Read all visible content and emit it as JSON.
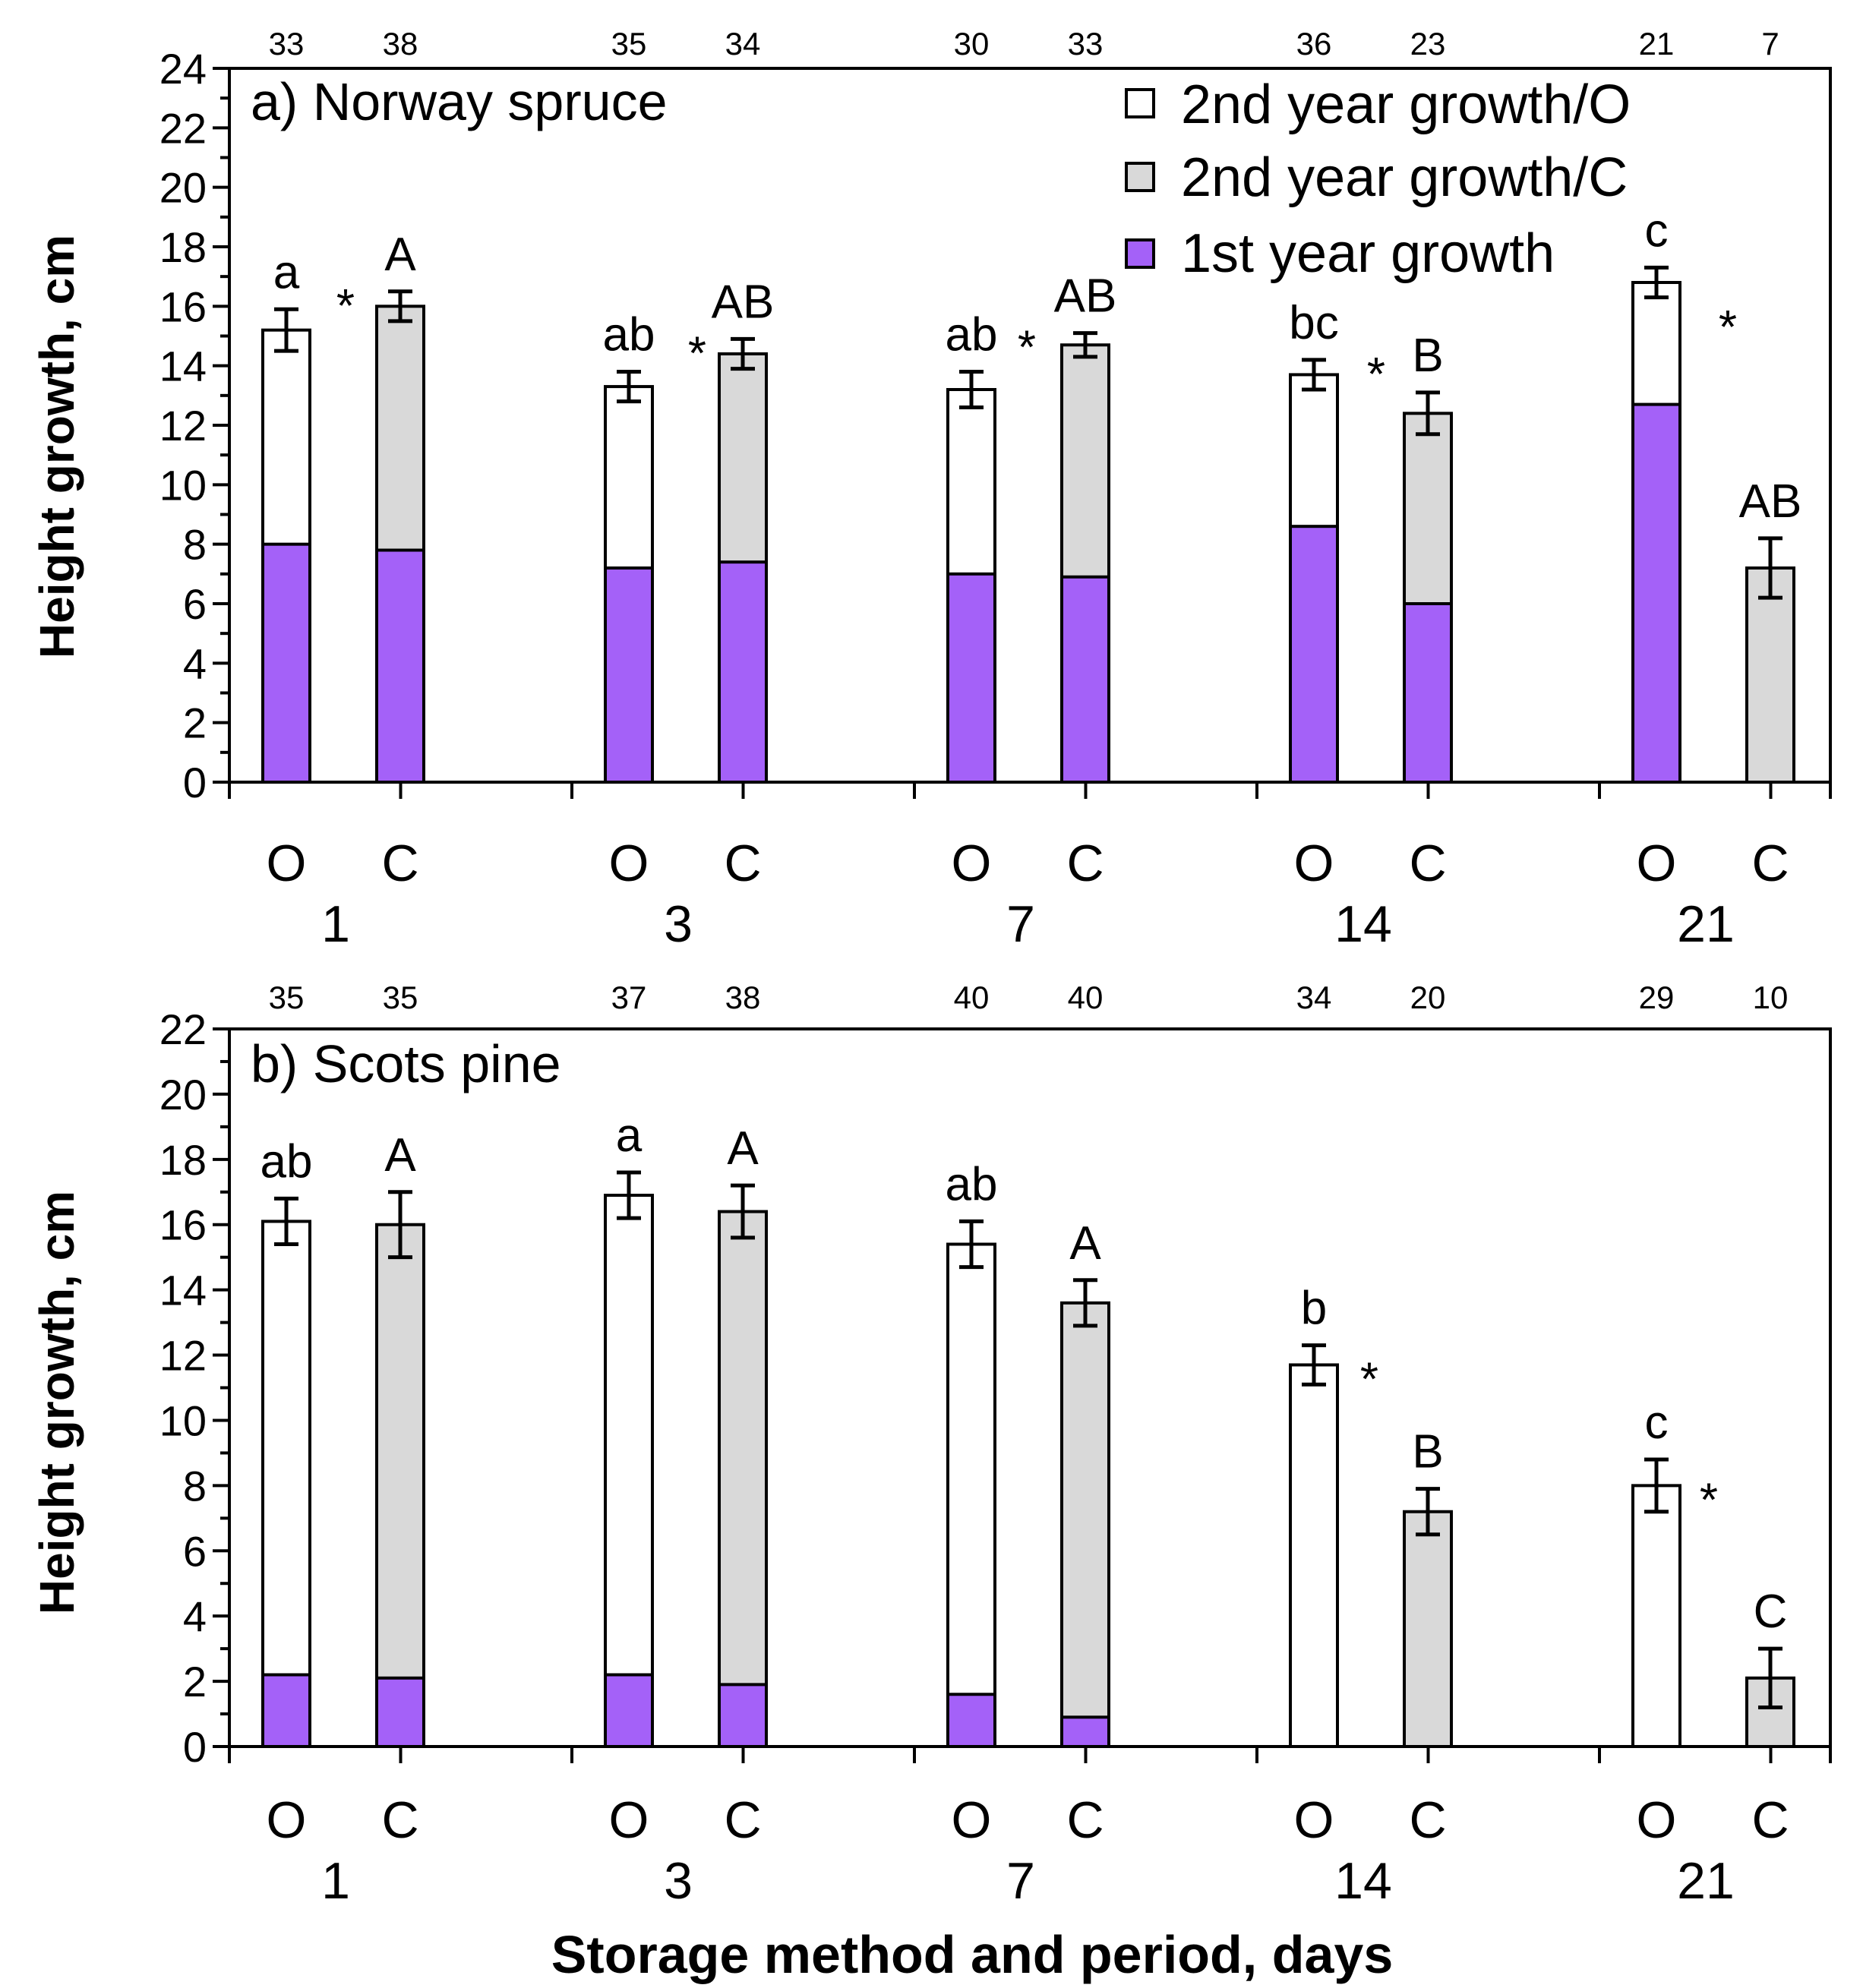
{
  "colors": {
    "first_year": "#a461f8",
    "second_open": "#ffffff",
    "second_cold": "#d9d9d9",
    "stroke": "#000000"
  },
  "legend": {
    "open": "2nd year growth/O",
    "cold": "2nd year growth/C",
    "first": "1st year growth"
  },
  "ylabel": "Height growth, cm",
  "xlabel": "Storage method and period, days",
  "chart_data": [
    {
      "type": "bar",
      "stacked": true,
      "title": "a) Norway spruce",
      "ylim": [
        0,
        24
      ],
      "yticks": [
        "0",
        "2",
        "4",
        "6",
        "8",
        "10",
        "12",
        "14",
        "16",
        "18",
        "20",
        "22",
        "24"
      ],
      "periods": [
        "1",
        "3",
        "7",
        "14",
        "21"
      ],
      "methods": [
        "O",
        "C"
      ],
      "bars": [
        {
          "period": "1",
          "method": "O",
          "first": 8.0,
          "total": 15.2,
          "err": 0.7,
          "n": "33",
          "sig": "a"
        },
        {
          "period": "1",
          "method": "C",
          "first": 7.8,
          "total": 16.0,
          "err": 0.5,
          "n": "38",
          "sig": "A"
        },
        {
          "period": "3",
          "method": "O",
          "first": 7.2,
          "total": 13.3,
          "err": 0.5,
          "n": "35",
          "sig": "ab"
        },
        {
          "period": "3",
          "method": "C",
          "first": 7.4,
          "total": 14.4,
          "err": 0.5,
          "n": "34",
          "sig": "AB"
        },
        {
          "period": "7",
          "method": "O",
          "first": 7.0,
          "total": 13.2,
          "err": 0.6,
          "n": "30",
          "sig": "ab"
        },
        {
          "period": "7",
          "method": "C",
          "first": 6.9,
          "total": 14.7,
          "err": 0.4,
          "n": "33",
          "sig": "AB"
        },
        {
          "period": "14",
          "method": "O",
          "first": 8.6,
          "total": 13.7,
          "err": 0.5,
          "n": "36",
          "sig": "bc"
        },
        {
          "period": "14",
          "method": "C",
          "first": 6.0,
          "total": 12.4,
          "err": 0.7,
          "n": "23",
          "sig": "B"
        },
        {
          "period": "21",
          "method": "O",
          "first": 12.7,
          "total": 16.8,
          "err": 0.5,
          "n": "21",
          "sig": "c"
        },
        {
          "period": "21",
          "method": "C",
          "first": 0,
          "total": 7.2,
          "err": 1.0,
          "n": "7",
          "sig": "AB"
        }
      ],
      "significance_stars": [
        "1",
        "3",
        "7",
        "14",
        "21"
      ],
      "star_symbol": "*"
    },
    {
      "type": "bar",
      "stacked": true,
      "title": "b) Scots pine",
      "ylim": [
        0,
        22
      ],
      "yticks": [
        "0",
        "2",
        "4",
        "6",
        "8",
        "10",
        "12",
        "14",
        "16",
        "18",
        "20",
        "22"
      ],
      "periods": [
        "1",
        "3",
        "7",
        "14",
        "21"
      ],
      "methods": [
        "O",
        "C"
      ],
      "bars": [
        {
          "period": "1",
          "method": "O",
          "first": 2.2,
          "total": 16.1,
          "err": 0.7,
          "n": "35",
          "sig": "ab"
        },
        {
          "period": "1",
          "method": "C",
          "first": 2.1,
          "total": 16.0,
          "err": 1.0,
          "n": "35",
          "sig": "A"
        },
        {
          "period": "3",
          "method": "O",
          "first": 2.2,
          "total": 16.9,
          "err": 0.7,
          "n": "37",
          "sig": "a"
        },
        {
          "period": "3",
          "method": "C",
          "first": 1.9,
          "total": 16.4,
          "err": 0.8,
          "n": "38",
          "sig": "A"
        },
        {
          "period": "7",
          "method": "O",
          "first": 1.6,
          "total": 15.4,
          "err": 0.7,
          "n": "40",
          "sig": "ab"
        },
        {
          "period": "7",
          "method": "C",
          "first": 0.9,
          "total": 13.6,
          "err": 0.7,
          "n": "40",
          "sig": "A"
        },
        {
          "period": "14",
          "method": "O",
          "first": 0,
          "total": 11.7,
          "err": 0.6,
          "n": "34",
          "sig": "b"
        },
        {
          "period": "14",
          "method": "C",
          "first": 0,
          "total": 7.2,
          "err": 0.7,
          "n": "20",
          "sig": "B"
        },
        {
          "period": "21",
          "method": "O",
          "first": 0,
          "total": 8.0,
          "err": 0.8,
          "n": "29",
          "sig": "c"
        },
        {
          "period": "21",
          "method": "C",
          "first": 0,
          "total": 2.1,
          "err": 0.9,
          "n": "10",
          "sig": "C"
        }
      ],
      "significance_stars": [
        "14",
        "21"
      ],
      "star_symbol": "*"
    }
  ]
}
